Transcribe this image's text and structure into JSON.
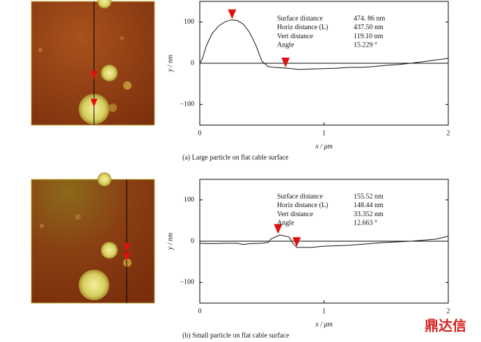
{
  "chart_data": [
    {
      "type": "line",
      "caption": "(a) Large particle on flat cable surface",
      "xlabel": "x / μm",
      "ylabel": "y / nm",
      "xlim": [
        0,
        2
      ],
      "xticks": [
        0,
        1,
        2
      ],
      "ylim": [
        -150,
        150
      ],
      "yticks": [
        {
          "value": -100,
          "label": "−100"
        },
        0,
        100
      ],
      "series": [
        {
          "name": null,
          "color": "#111111",
          "x": [
            0,
            0.02,
            0.05,
            0.08,
            0.1,
            0.15,
            0.2,
            0.25,
            0.3,
            0.35,
            0.4,
            0.45,
            0.5,
            0.55,
            0.6,
            0.7,
            0.8,
            0.9,
            1.0,
            1.1,
            1.2,
            1.3,
            1.4,
            1.5,
            1.6,
            1.7,
            1.8,
            1.9,
            2.0
          ],
          "values": [
            0,
            10,
            40,
            60,
            72,
            90,
            100,
            105,
            104,
            95,
            75,
            45,
            5,
            -8,
            -10,
            -12,
            -15,
            -14,
            -13,
            -12,
            -10,
            -10,
            -8,
            -5,
            -3,
            0,
            4,
            8,
            12
          ]
        }
      ],
      "markers": {
        "color": "#e01010",
        "x": [
          0.26,
          0.69
        ],
        "y": [
          107,
          -10
        ]
      },
      "stats": [
        {
          "label": "Surface distance",
          "value": "474. 86 nm"
        },
        {
          "label": "Horiz distance (L)",
          "value": "437.50 nm"
        },
        {
          "label": "Vert distance",
          "value": "119.10 nm"
        },
        {
          "label": "Angle",
          "value": "15.229 °"
        }
      ]
    },
    {
      "type": "line",
      "caption": "(b) Small particle on flat cable surface",
      "xlabel": "x / μm",
      "ylabel": "y / nm",
      "xlim": [
        0,
        2
      ],
      "xticks": [
        0,
        1,
        2
      ],
      "ylim": [
        -150,
        150
      ],
      "yticks": [
        {
          "value": -100,
          "label": "−100"
        },
        0,
        100
      ],
      "series": [
        {
          "name": null,
          "color": "#111111",
          "x": [
            0,
            0.1,
            0.2,
            0.3,
            0.35,
            0.4,
            0.5,
            0.55,
            0.56,
            0.57,
            0.62,
            0.65,
            0.72,
            0.75,
            0.78,
            0.9,
            1.0,
            1.2,
            1.4,
            1.5,
            1.7,
            1.9,
            2.0
          ],
          "values": [
            -5,
            -6,
            -5,
            -5,
            -8,
            -6,
            -5,
            -3,
            0,
            5,
            12,
            15,
            10,
            -5,
            -15,
            -15,
            -12,
            -10,
            -5,
            -3,
            0,
            5,
            12
          ]
        }
      ],
      "markers": {
        "color": "#e01010",
        "x": [
          0.63,
          0.78
        ],
        "y": [
          18,
          -14
        ]
      },
      "stats": [
        {
          "label": "Surface distance",
          "value": "155.52 nm"
        },
        {
          "label": "Horiz distance (L)",
          "value": "148.44 nm"
        },
        {
          "label": "Vert distance",
          "value": "33.352 nm"
        },
        {
          "label": "Angle",
          "value": "12.663 °"
        }
      ]
    }
  ],
  "watermark": "鼎达信"
}
